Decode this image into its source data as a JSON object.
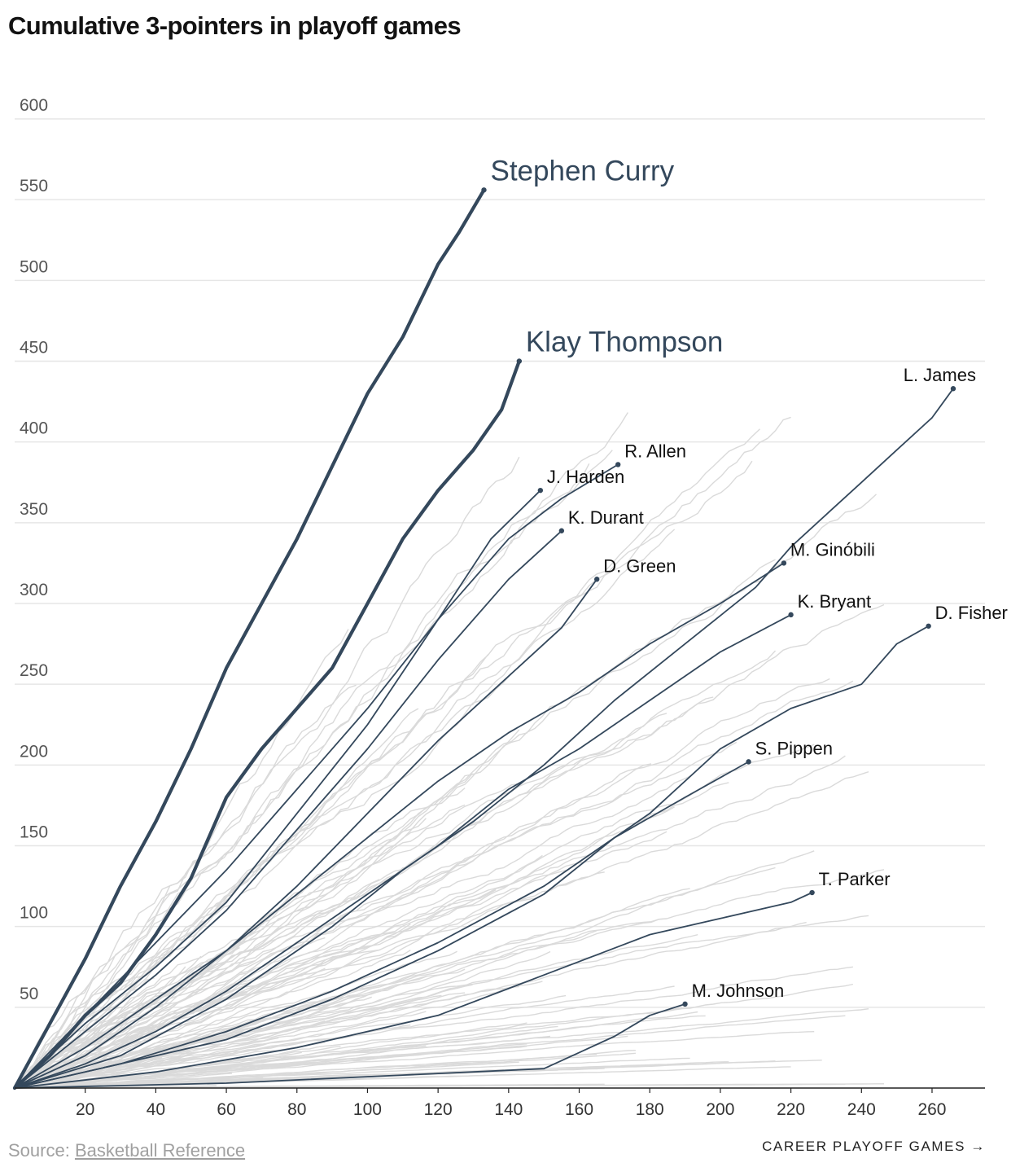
{
  "title": "Cumulative 3-pointers in playoff games",
  "source": {
    "prefix": "Source:",
    "link": "Basketball Reference"
  },
  "x_axis_label": "CAREER PLAYOFF GAMES",
  "x_axis_arrow": "→",
  "colors": {
    "highlight": "#34485c",
    "background_lines": "#dadada",
    "grid": "#e6e6e6",
    "axis": "#222222"
  },
  "chart_data": {
    "type": "line",
    "title": "Cumulative 3-pointers in playoff games",
    "xlabel": "CAREER PLAYOFF GAMES",
    "ylabel": "",
    "xlim": [
      0,
      275
    ],
    "ylim": [
      0,
      600
    ],
    "x_ticks": [
      20,
      40,
      60,
      80,
      100,
      120,
      140,
      160,
      180,
      200,
      220,
      240,
      260
    ],
    "y_ticks": [
      50,
      100,
      150,
      200,
      250,
      300,
      350,
      400,
      450,
      500,
      550,
      600
    ],
    "grid": "horizontal",
    "background_series_note": "Many other players shown as light gray lines (unlabeled)",
    "series": [
      {
        "name": "Stephen Curry",
        "emphasis": "primary",
        "x": [
          0,
          10,
          20,
          30,
          40,
          50,
          60,
          70,
          80,
          90,
          100,
          110,
          120,
          126,
          133
        ],
        "y": [
          0,
          40,
          80,
          125,
          165,
          210,
          260,
          300,
          340,
          385,
          430,
          465,
          510,
          530,
          556
        ]
      },
      {
        "name": "Klay Thompson",
        "emphasis": "primary",
        "x": [
          0,
          10,
          20,
          30,
          40,
          50,
          60,
          70,
          80,
          90,
          100,
          110,
          120,
          130,
          138,
          143
        ],
        "y": [
          0,
          20,
          45,
          65,
          95,
          130,
          180,
          210,
          235,
          260,
          300,
          340,
          370,
          395,
          420,
          450
        ]
      },
      {
        "name": "L. James",
        "emphasis": "secondary",
        "x": [
          0,
          30,
          60,
          90,
          110,
          130,
          150,
          170,
          190,
          210,
          220,
          230,
          240,
          250,
          260,
          266
        ],
        "y": [
          0,
          20,
          55,
          100,
          135,
          165,
          200,
          240,
          275,
          310,
          335,
          355,
          375,
          395,
          415,
          433
        ]
      },
      {
        "name": "R. Allen",
        "emphasis": "secondary",
        "x": [
          0,
          20,
          40,
          60,
          80,
          100,
          120,
          140,
          155,
          171
        ],
        "y": [
          0,
          45,
          90,
          135,
          185,
          235,
          290,
          340,
          365,
          386
        ]
      },
      {
        "name": "J. Harden",
        "emphasis": "secondary",
        "x": [
          0,
          20,
          40,
          60,
          80,
          100,
          120,
          135,
          149
        ],
        "y": [
          0,
          40,
          75,
          115,
          170,
          225,
          290,
          340,
          370
        ]
      },
      {
        "name": "K. Durant",
        "emphasis": "secondary",
        "x": [
          0,
          20,
          40,
          60,
          80,
          100,
          120,
          140,
          155
        ],
        "y": [
          0,
          35,
          70,
          110,
          160,
          210,
          265,
          315,
          345
        ]
      },
      {
        "name": "D. Green",
        "emphasis": "secondary",
        "x": [
          0,
          20,
          40,
          60,
          80,
          100,
          120,
          140,
          155,
          165
        ],
        "y": [
          0,
          25,
          55,
          85,
          125,
          170,
          215,
          255,
          285,
          315
        ]
      },
      {
        "name": "M. Ginóbili",
        "emphasis": "secondary",
        "x": [
          0,
          20,
          40,
          60,
          80,
          100,
          120,
          140,
          160,
          180,
          200,
          218
        ],
        "y": [
          0,
          20,
          50,
          85,
          120,
          155,
          190,
          220,
          245,
          275,
          300,
          325
        ]
      },
      {
        "name": "K. Bryant",
        "emphasis": "secondary",
        "x": [
          0,
          20,
          40,
          60,
          80,
          100,
          120,
          140,
          160,
          180,
          200,
          220
        ],
        "y": [
          0,
          15,
          35,
          60,
          90,
          120,
          150,
          185,
          210,
          240,
          270,
          293
        ]
      },
      {
        "name": "D. Fisher",
        "emphasis": "secondary",
        "x": [
          0,
          30,
          60,
          90,
          120,
          150,
          180,
          200,
          220,
          240,
          250,
          259
        ],
        "y": [
          0,
          15,
          35,
          60,
          90,
          125,
          170,
          210,
          235,
          250,
          275,
          286
        ]
      },
      {
        "name": "S. Pippen",
        "emphasis": "secondary",
        "x": [
          0,
          30,
          60,
          90,
          120,
          150,
          170,
          190,
          208
        ],
        "y": [
          0,
          15,
          30,
          55,
          85,
          120,
          155,
          180,
          202
        ]
      },
      {
        "name": "T. Parker",
        "emphasis": "secondary",
        "x": [
          0,
          40,
          80,
          120,
          150,
          180,
          200,
          220,
          226
        ],
        "y": [
          0,
          10,
          25,
          45,
          70,
          95,
          105,
          115,
          121
        ]
      },
      {
        "name": "M. Johnson",
        "emphasis": "secondary",
        "x": [
          0,
          60,
          110,
          150,
          160,
          170,
          180,
          190
        ],
        "y": [
          0,
          3,
          8,
          12,
          22,
          32,
          45,
          52
        ]
      }
    ]
  }
}
